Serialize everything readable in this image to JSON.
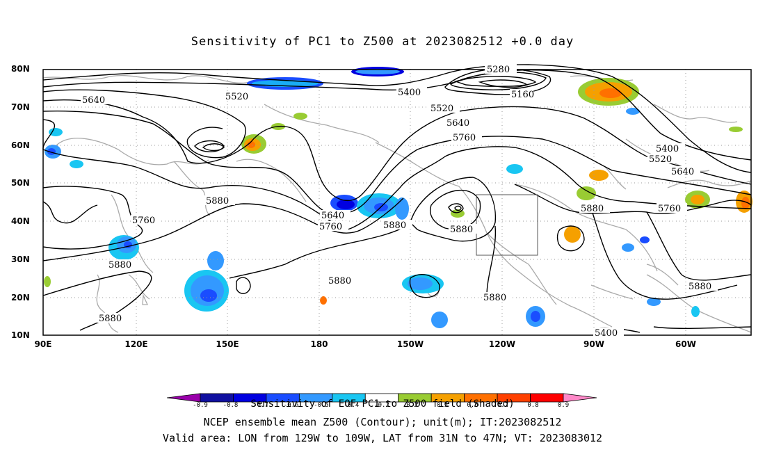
{
  "title": "Sensitivity of PC1 to Z500 at 2023082512 +0.0 day",
  "lat_labels": [
    "80N",
    "70N",
    "60N",
    "50N",
    "40N",
    "30N",
    "20N",
    "10N"
  ],
  "lon_labels": [
    "90E",
    "120E",
    "150E",
    "180",
    "150W",
    "120W",
    "90W",
    "60W"
  ],
  "contour_labels": [
    "5280",
    "5160",
    "5400",
    "5520",
    "5640",
    "5760",
    "5880",
    "5640",
    "5520",
    "5400",
    "5520",
    "5640",
    "5760",
    "5640",
    "5760",
    "5880",
    "5760",
    "5880",
    "5880",
    "5880",
    "5880",
    "5880",
    "5880",
    "5400",
    "5520",
    "5640",
    "5760",
    "5880"
  ],
  "colorbar": {
    "colors": [
      "#9900aa",
      "#1010a0",
      "#0000e0",
      "#1a4dff",
      "#3399ff",
      "#19c6f2",
      "#ffffff",
      "#99cc33",
      "#f5a000",
      "#ff7000",
      "#ff4000",
      "#ff0000",
      "#ff88c8"
    ],
    "tick_labels": [
      "-0.9",
      "-0.8",
      "-0.7",
      "-0.6",
      "-0.5",
      "-0.4",
      "-0.2",
      "0.2",
      "0.5",
      "0.6",
      "0.7",
      "0.8",
      "0.9"
    ]
  },
  "caption_line1": "Sensitivity of EOF PC1 to Z500 field (Shaded)",
  "caption_line2": "NCEP ensemble mean Z500 (Contour); unit(m); IT:2023082512",
  "caption_line3": "Valid area: LON from 129W to 109W, LAT from 31N to 47N; VT: 2023083012",
  "valid_area": {
    "lon_from": -129,
    "lon_to": -109,
    "lat_from": 31,
    "lat_to": 47
  },
  "colors": {
    "coast": "#aaaaaa",
    "contour": "#000000",
    "grid": "#9a9a9a"
  }
}
